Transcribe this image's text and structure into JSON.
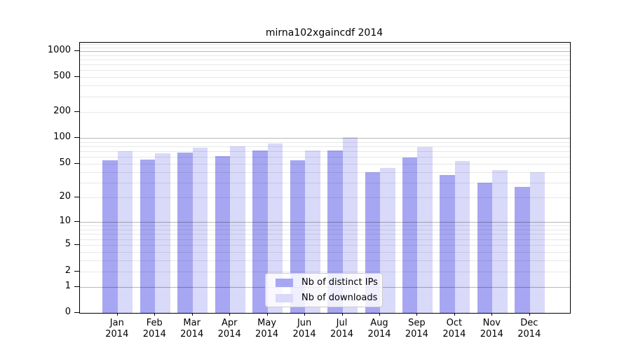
{
  "title": "mirna102xgaincdf 2014",
  "chart_data": {
    "type": "bar",
    "title": "mirna102xgaincdf 2014",
    "categories": [
      "Jan",
      "Feb",
      "Mar",
      "Apr",
      "May",
      "Jun",
      "Jul",
      "Aug",
      "Sep",
      "Oct",
      "Nov",
      "Dec"
    ],
    "category_year": "2014",
    "series": [
      {
        "name": "Nb of distinct IPs",
        "color": "#a6a6f2",
        "values": [
          55,
          56,
          67,
          62,
          71,
          55,
          71,
          40,
          59,
          37,
          30,
          27
        ]
      },
      {
        "name": "Nb of downloads",
        "color": "#d9d9f9",
        "values": [
          70,
          66,
          77,
          80,
          86,
          72,
          102,
          45,
          79,
          54,
          42,
          40
        ]
      }
    ],
    "y_axis": {
      "scale": "log1p",
      "tick_labels": [
        "0",
        "1",
        "2",
        "5",
        "10",
        "20",
        "50",
        "100",
        "200",
        "500",
        "1000"
      ],
      "tick_values": [
        0,
        1,
        2,
        5,
        10,
        20,
        50,
        100,
        200,
        500,
        1000
      ],
      "ylim": [
        0,
        1243
      ]
    },
    "grid": {
      "major": true,
      "minor": true
    },
    "legend_position": "lower-center-inside"
  },
  "legend": {
    "ips_label": "Nb of distinct IPs",
    "downloads_label": "Nb of downloads"
  },
  "colors": {
    "ips_bar": "#a6a6f2",
    "downloads_bar": "#d9d9f9",
    "major_grid": "#bfbfbf",
    "minor_grid": "#e9e9e9",
    "axis": "#000000"
  }
}
